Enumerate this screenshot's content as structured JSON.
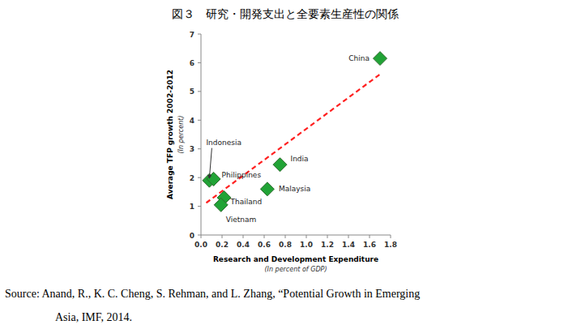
{
  "chart_data": {
    "type": "scatter",
    "title": "図３　研究・開発支出と全要素生産性の関係",
    "x_label": "Research and Development  Expenditure",
    "x_sublabel": "(In percent of GDP)",
    "y_label": "Average TFP growth 2002-2012",
    "y_sublabel": "(In percent)",
    "labels": [
      "China",
      "India",
      "Malaysia",
      "Thailand",
      "Vietnam",
      "Indonesia",
      "Philippines"
    ],
    "x": [
      1.7,
      0.75,
      0.63,
      0.22,
      0.19,
      0.08,
      0.12
    ],
    "values": [
      6.15,
      2.45,
      1.6,
      1.3,
      1.05,
      1.9,
      1.95
    ],
    "color": "#21a336",
    "marker": "diamond",
    "trend": {
      "x": [
        0.05,
        1.7
      ],
      "values": [
        1.12,
        5.6
      ],
      "color": "#ff2020",
      "line_style": "dashed"
    },
    "xlim": [
      0,
      1.8
    ],
    "ylim": [
      0,
      7
    ],
    "xticks": [
      {
        "value": 0,
        "label": "0.0"
      },
      0.2,
      0.4,
      0.6,
      0.8,
      {
        "value": 1,
        "label": "1.0"
      },
      1.2,
      1.4,
      1.6,
      1.8
    ],
    "yticks": [
      0,
      1,
      2,
      3,
      4,
      5,
      6,
      7
    ],
    "grid": false,
    "source": [
      "Source: Anand, R., K. C. Cheng, S. Rehman, and L. Zhang, “Potential Growth in Emerging",
      "Asia, IMF, 2014."
    ]
  }
}
